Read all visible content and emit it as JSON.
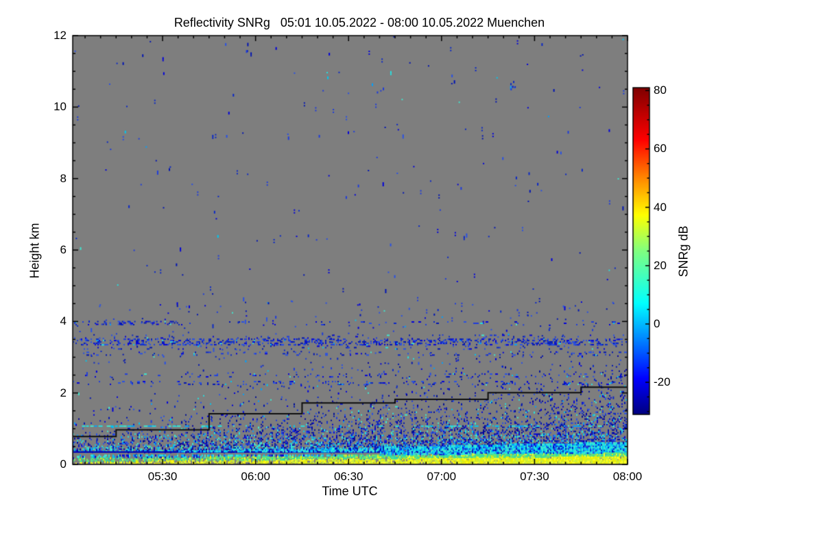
{
  "header": {
    "title": "Reflectivity SNRg   05:01 10.05.2022 - 08:00 10.05.2022 Muenchen"
  },
  "axes": {
    "y": {
      "label": "Height km",
      "ticks": [
        0,
        2,
        4,
        6,
        8,
        10,
        12
      ]
    },
    "x": {
      "label": "Time UTC",
      "ticks": [
        {
          "t": 30,
          "label": "05:30"
        },
        {
          "t": 60,
          "label": "06:00"
        },
        {
          "t": 90,
          "label": "06:30"
        },
        {
          "t": 120,
          "label": "07:00"
        },
        {
          "t": 150,
          "label": "07:30"
        },
        {
          "t": 180,
          "label": "08:00"
        }
      ]
    }
  },
  "colorbar": {
    "label": "SNRg dB",
    "ticks": [
      80,
      60,
      40,
      20,
      0,
      -20
    ]
  },
  "chart_data": {
    "type": "heatmap",
    "title": "Reflectivity SNRg   05:01 10.05.2022 - 08:00 10.05.2022 Muenchen",
    "station": "Muenchen",
    "time_start": "05:01 10.05.2022 UTC",
    "time_end": "08:00 10.05.2022 UTC",
    "xlabel": "Time UTC",
    "ylabel": "Height km",
    "colorbar_label": "SNRg dB",
    "x_range_minutes": [
      1,
      180
    ],
    "ylim_km": [
      0,
      12
    ],
    "x_minor_step_min": 5,
    "y_minor_step_km": 0.5,
    "background_color": "#7e7e7e",
    "frame_color": "#000000",
    "colorbar": {
      "ticks": [
        80,
        60,
        40,
        20,
        0,
        -20
      ],
      "minor_step_db": 5,
      "value_range": [
        -31,
        81
      ],
      "gradient_top_to_bottom": [
        [
          "#7f0000",
          0.0
        ],
        [
          "#ff0000",
          0.16
        ],
        [
          "#ff8000",
          0.27
        ],
        [
          "#ffff00",
          0.39
        ],
        [
          "#80ff80",
          0.5
        ],
        [
          "#00ffff",
          0.66
        ],
        [
          "#0000ff",
          0.89
        ],
        [
          "#00007f",
          1.0
        ]
      ]
    },
    "mixing_layer_line_km": {
      "color": "#0d0d0d",
      "points": [
        [
          1,
          0.78
        ],
        [
          15,
          0.78
        ],
        [
          15,
          0.97
        ],
        [
          45,
          0.97
        ],
        [
          45,
          1.42
        ],
        [
          75,
          1.42
        ],
        [
          75,
          1.72
        ],
        [
          105,
          1.72
        ],
        [
          105,
          1.82
        ],
        [
          135,
          1.82
        ],
        [
          135,
          2.01
        ],
        [
          165,
          2.01
        ],
        [
          165,
          2.16
        ],
        [
          180,
          2.16
        ]
      ]
    },
    "noise": {
      "background_speckle_count": 300,
      "mid_speckle": {
        "count": 300,
        "h_range": [
          1.5,
          4.6
        ]
      },
      "blue_palette": [
        "#0000dc",
        "#1e3cdc",
        "#0014b4",
        "#2850e6",
        "#0a28c8"
      ],
      "dark_blue_palette": [
        "#0000a0",
        "#000f96"
      ],
      "cyan_palette": [
        "#00c8f0",
        "#28e0e0",
        "#00a0ff",
        "#40e8d0"
      ],
      "green_palette": [
        "#50e090",
        "#78e860",
        "#30d8a8"
      ],
      "yellow_palette": [
        "#f0f000",
        "#ffff28",
        "#d8e820",
        "#c8f040"
      ],
      "bands": [
        {
          "h_km": 3.98,
          "half_km": 0.05,
          "density": 0.05
        },
        {
          "h_km": 3.98,
          "half_km": 0.04,
          "density": 0.22,
          "t_range": [
            8,
            36
          ]
        },
        {
          "h_km": 3.45,
          "half_km": 0.08,
          "density": 0.25
        },
        {
          "h_km": 3.45,
          "half_km": 0.2,
          "density": 0.05
        },
        {
          "h_km": 3.12,
          "half_km": 0.04,
          "density": 0.06
        },
        {
          "h_km": 2.52,
          "half_km": 0.05,
          "density": 0.08
        },
        {
          "h_km": 2.31,
          "half_km": 0.05,
          "density": 0.13
        }
      ],
      "clusters": [
        {
          "t": 143,
          "h_km": 10.62,
          "n": 8,
          "cyan": true
        },
        {
          "t": 100,
          "h_km": 10.45,
          "n": 3
        },
        {
          "t": 57,
          "h_km": 11.72,
          "n": 3
        },
        {
          "t": 16,
          "h_km": 11.3,
          "n": 2
        },
        {
          "t": 124,
          "h_km": 10.78,
          "n": 3
        },
        {
          "t": 70,
          "h_km": 9.3,
          "n": 2
        }
      ],
      "cyan_dash_line": {
        "h_km": 1.09,
        "segments": [
          {
            "t_range": [
              4,
              48
            ],
            "density": 0.5
          },
          {
            "t_range": [
              48,
              112
            ],
            "density": 0.12
          },
          {
            "t_range": [
              112,
              172
            ],
            "density": 0.4
          }
        ]
      },
      "dark_blue_line": {
        "h_km_range": [
          0.325,
          0.37
        ],
        "color": "#0000b4"
      },
      "boundary_layer_zone": {
        "base_km": 0.37,
        "amp": 0.8,
        "lambda_base": 0.22,
        "lambda_per_min": 0.003
      },
      "surface_band": {
        "density_base": 0.45,
        "density_per_min": 0.0035,
        "density_max": 0.96,
        "yellow_top_base": 0.1,
        "yellow_top_per_min": 0.0009,
        "green_add": 0.1,
        "cyan_top_base": 0.33,
        "cyan_top_per_min": 0.0018
      }
    }
  }
}
